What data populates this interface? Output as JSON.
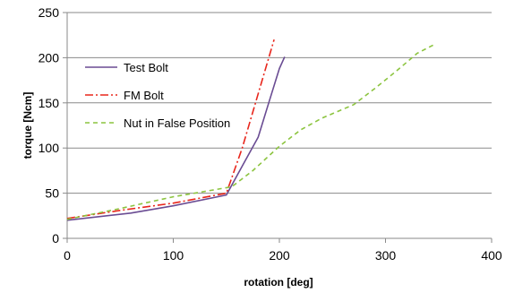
{
  "chart_data": {
    "type": "line",
    "xlabel": "rotation [deg]",
    "ylabel": "torque [Ncm]",
    "xlim": [
      0,
      400
    ],
    "ylim": [
      0,
      250
    ],
    "xticks": [
      0,
      100,
      200,
      300,
      400
    ],
    "yticks": [
      0,
      50,
      100,
      150,
      200,
      250
    ],
    "xtick_labels": [
      "0",
      "100",
      "200",
      "300",
      "400"
    ],
    "ytick_labels": [
      "0",
      "50",
      "100",
      "150",
      "200",
      "250"
    ],
    "grid": "horizontal",
    "legend_position": "upper-left inside",
    "series": [
      {
        "name": "Test Bolt",
        "color": "#6a4c93",
        "dash": "solid",
        "points": [
          [
            0,
            20
          ],
          [
            60,
            28
          ],
          [
            100,
            36
          ],
          [
            150,
            48
          ],
          [
            165,
            80
          ],
          [
            180,
            112
          ],
          [
            190,
            150
          ],
          [
            200,
            188
          ],
          [
            205,
            201
          ]
        ]
      },
      {
        "name": "FM Bolt",
        "color": "#e8261c",
        "dash": "dashdot",
        "points": [
          [
            0,
            22
          ],
          [
            50,
            31
          ],
          [
            100,
            39
          ],
          [
            150,
            50
          ],
          [
            165,
            100
          ],
          [
            180,
            160
          ],
          [
            195,
            220
          ]
        ]
      },
      {
        "name": "Nut in False Position",
        "color": "#8cc43f",
        "dash": "dashed",
        "points": [
          [
            0,
            21
          ],
          [
            50,
            33
          ],
          [
            100,
            46
          ],
          [
            155,
            57
          ],
          [
            175,
            75
          ],
          [
            200,
            102
          ],
          [
            220,
            120
          ],
          [
            240,
            133
          ],
          [
            270,
            148
          ],
          [
            290,
            166
          ],
          [
            310,
            185
          ],
          [
            330,
            205
          ],
          [
            345,
            214
          ]
        ]
      }
    ]
  }
}
